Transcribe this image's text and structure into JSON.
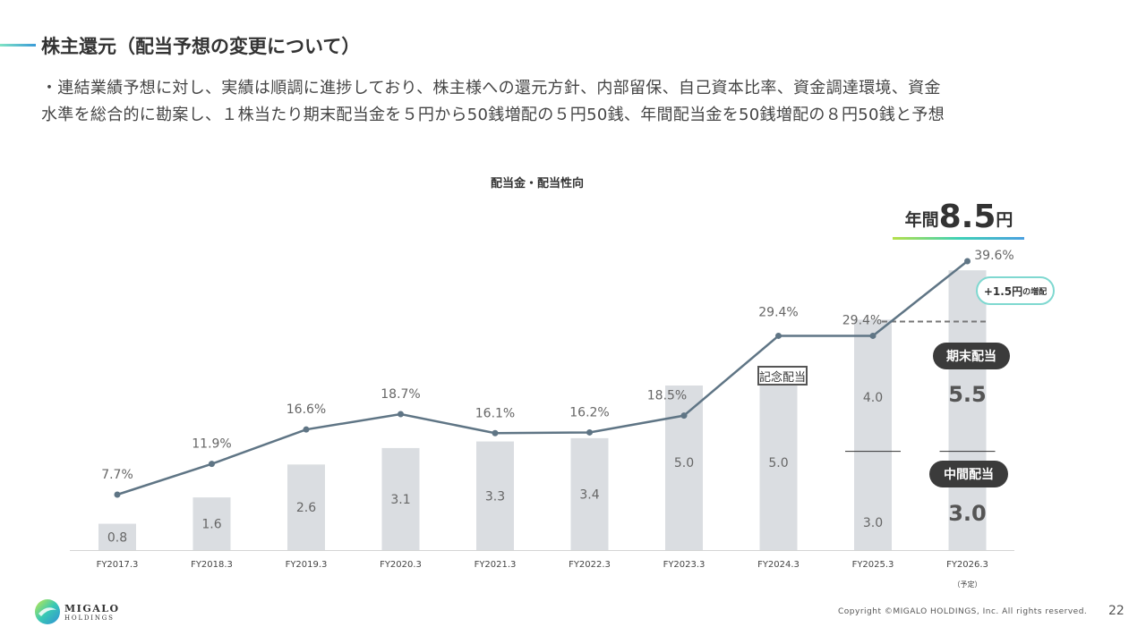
{
  "header": {
    "title": "株主還元（配当予想の変更について）",
    "body_line1": "・連結業績予想に対し、実績は順調に進捗しており、株主様への還元方針、内部留保、自己資本比率、資金調達環境、資金",
    "body_line2": "水準を総合的に勘案し、１株当たり期末配当金を５円から50銭増配の５円50銭、年間配当金を50銭増配の８円50銭と予想"
  },
  "chart_data": {
    "type": "bar",
    "title": "配当金・配当性向",
    "categories": [
      "FY2017.3",
      "FY2018.3",
      "FY2019.3",
      "FY2020.3",
      "FY2021.3",
      "FY2022.3",
      "FY2023.3",
      "FY2024.3",
      "FY2025.3",
      "FY2026.3"
    ],
    "category_note": "（予定）",
    "series": [
      {
        "name": "中間配当",
        "values": [
          null,
          null,
          null,
          null,
          null,
          null,
          null,
          null,
          3.0,
          3.0
        ]
      },
      {
        "name": "期末配当",
        "values": [
          null,
          null,
          null,
          null,
          null,
          null,
          null,
          null,
          4.0,
          5.5
        ]
      },
      {
        "name": "記念配当",
        "values": [
          null,
          null,
          null,
          null,
          null,
          null,
          null,
          5.0,
          null,
          null
        ]
      },
      {
        "name": "配当金",
        "values": [
          0.8,
          1.6,
          2.6,
          3.1,
          3.3,
          3.4,
          5.0,
          5.0,
          null,
          null
        ]
      }
    ],
    "bar_labels": [
      [
        "0.8"
      ],
      [
        "1.6"
      ],
      [
        "2.6"
      ],
      [
        "3.1"
      ],
      [
        "3.3"
      ],
      [
        "3.4"
      ],
      [
        "5.0"
      ],
      [
        "5.0"
      ],
      [
        "3.0",
        "4.0"
      ],
      [
        "3.0",
        "5.5"
      ]
    ],
    "payout_ratio": {
      "name": "配当性向",
      "values": [
        7.7,
        11.9,
        16.6,
        18.7,
        16.1,
        16.2,
        18.5,
        29.4,
        29.4,
        39.6
      ],
      "labels": [
        "7.7%",
        "11.9%",
        "16.6%",
        "18.7%",
        "16.1%",
        "16.2%",
        "18.5%",
        "29.4%",
        "29.4%",
        "39.6%"
      ]
    },
    "annotations": {
      "annual_label": "年間",
      "annual_value": "8.5",
      "annual_unit": "円",
      "increase_main": "+1.5円",
      "increase_small": "の増配",
      "year_end_label": "期末配当",
      "interim_label": "中間配当",
      "commemorative_label": "記念配当"
    },
    "colors": {
      "bar": "#dadde1",
      "line": "#5f7585",
      "dashed": "#777777"
    }
  },
  "footer": {
    "copyright": "Copyright ©MIGALO HOLDINGS, Inc. All rights reserved.",
    "page_number": "22",
    "logo_line1": "MIGALO",
    "logo_line2": "HOLDINGS"
  }
}
